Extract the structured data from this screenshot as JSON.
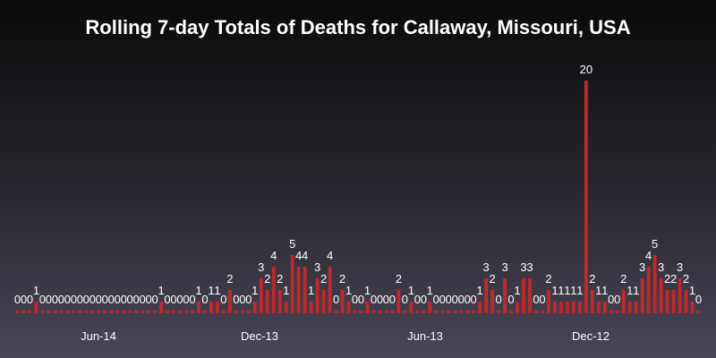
{
  "chart_data": {
    "type": "bar",
    "title": "Rolling 7-day Totals of Deaths for Callaway, Missouri, USA",
    "xlabel": "",
    "ylabel": "",
    "ylim": [
      0,
      20
    ],
    "x_tick_labels": [
      "Jun-14",
      "Dec-13",
      "Jun-13",
      "Dec-12"
    ],
    "bar_color": "#c0282a",
    "grid": false,
    "legend": "none",
    "values": [
      0,
      0,
      0,
      1,
      0,
      0,
      0,
      0,
      0,
      0,
      0,
      0,
      0,
      0,
      0,
      0,
      0,
      0,
      0,
      0,
      0,
      0,
      0,
      1,
      0,
      0,
      0,
      0,
      0,
      1,
      0,
      1,
      1,
      0,
      2,
      0,
      0,
      0,
      1,
      3,
      2,
      4,
      2,
      1,
      5,
      4,
      4,
      1,
      3,
      2,
      4,
      0,
      2,
      1,
      0,
      0,
      1,
      0,
      0,
      0,
      0,
      2,
      0,
      1,
      0,
      0,
      1,
      0,
      0,
      0,
      0,
      0,
      0,
      0,
      1,
      3,
      2,
      0,
      3,
      0,
      1,
      3,
      3,
      0,
      0,
      2,
      1,
      1,
      1,
      1,
      1,
      20,
      2,
      1,
      1,
      0,
      0,
      2,
      1,
      1,
      3,
      4,
      5,
      3,
      2,
      2,
      3,
      2,
      1,
      0
    ]
  }
}
